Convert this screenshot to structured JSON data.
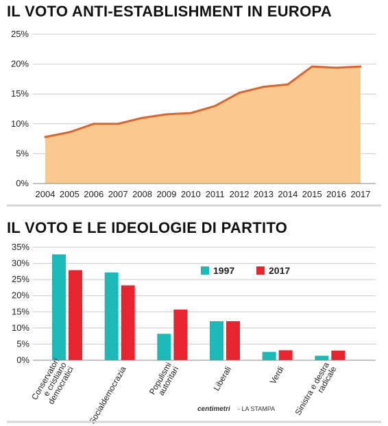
{
  "chart_data": [
    {
      "type": "area",
      "title": "IL VOTO ANTI-ESTABLISHMENT IN EUROPA",
      "x": [
        "2004",
        "2005",
        "2006",
        "2007",
        "2008",
        "2009",
        "2010",
        "2011",
        "2012",
        "2013",
        "2014",
        "2015",
        "2016",
        "2017"
      ],
      "values": [
        7.8,
        8.6,
        10.0,
        10.0,
        11.0,
        11.6,
        11.8,
        13.0,
        15.2,
        16.2,
        16.6,
        19.6,
        19.4,
        19.6
      ],
      "ylim": [
        0,
        25
      ],
      "yticks": [
        "0%",
        "5%",
        "10%",
        "15%",
        "20%",
        "25%"
      ],
      "grid": true,
      "colors": {
        "fill": "#f9c98e",
        "line": "#e0622b"
      }
    },
    {
      "type": "bar",
      "title": "IL VOTO E LE IDEOLOGIE DI PARTITO",
      "categories": [
        "Conservatori e cristiano democratici",
        "Socialdemocrazia",
        "Populismi autoritari",
        "Liberali",
        "Verdi",
        "Sinistra e destra radicale"
      ],
      "category_lines": [
        [
          "Conservatori",
          "e cristiano",
          "democratici"
        ],
        [
          "Socialdemocrazia"
        ],
        [
          "Populismi",
          "autoritari"
        ],
        [
          "Liberali"
        ],
        [
          "Verdi"
        ],
        [
          "Sinistra e destra",
          "radicale"
        ]
      ],
      "series": [
        {
          "name": "1997",
          "values": [
            32.8,
            27.2,
            8.2,
            12.1,
            2.6,
            1.4
          ],
          "color": "#1db8b8"
        },
        {
          "name": "2017",
          "values": [
            27.9,
            23.2,
            15.7,
            12.1,
            3.1,
            3.0
          ],
          "color": "#e8242e"
        }
      ],
      "ylim": [
        0,
        35
      ],
      "yticks": [
        "0%",
        "5%",
        "10%",
        "15%",
        "20%",
        "25%",
        "30%",
        "35%"
      ],
      "grid": true,
      "legend_position": "top-right",
      "source": {
        "brand": "centimetri",
        "outlet": "LA STAMPA"
      }
    }
  ]
}
